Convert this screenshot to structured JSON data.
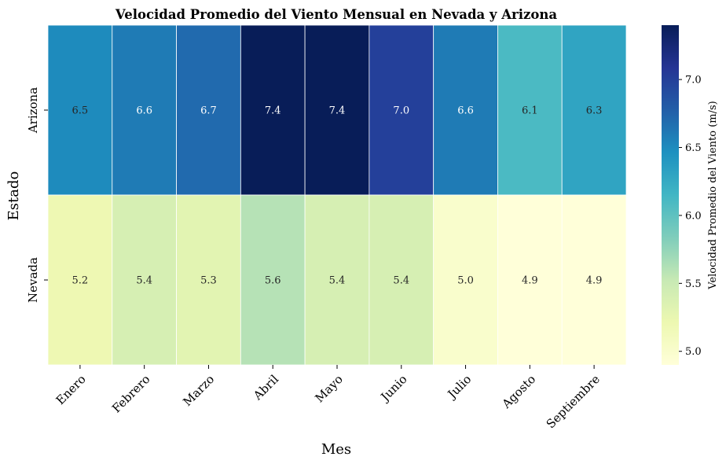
{
  "chart_data": {
    "type": "heatmap",
    "title": "Velocidad Promedio del Viento Mensual en Nevada y Arizona",
    "xlabel": "Mes",
    "ylabel": "Estado",
    "x_categories": [
      "Enero",
      "Febrero",
      "Marzo",
      "Abril",
      "Mayo",
      "Junio",
      "Julio",
      "Agosto",
      "Septiembre"
    ],
    "y_categories": [
      "Arizona",
      "Nevada"
    ],
    "values": [
      [
        6.5,
        6.6,
        6.7,
        7.4,
        7.4,
        7.0,
        6.6,
        6.1,
        6.3
      ],
      [
        5.2,
        5.4,
        5.3,
        5.6,
        5.4,
        5.4,
        5.0,
        4.9,
        4.9
      ]
    ],
    "value_format": "0.1",
    "colormap": "YlGnBu",
    "colorbar": {
      "label": "Velocidad Promedio del Viento (m/s)",
      "range": [
        4.9,
        7.4
      ],
      "ticks": [
        5.0,
        5.5,
        6.0,
        6.5,
        7.0
      ],
      "tick_labels": [
        "5.0",
        "5.5",
        "6.0",
        "6.5",
        "7.0"
      ]
    },
    "annotation_colors": {
      "dark_cell": "#ffffff",
      "light_cell": "#262626"
    },
    "grid": false
  }
}
